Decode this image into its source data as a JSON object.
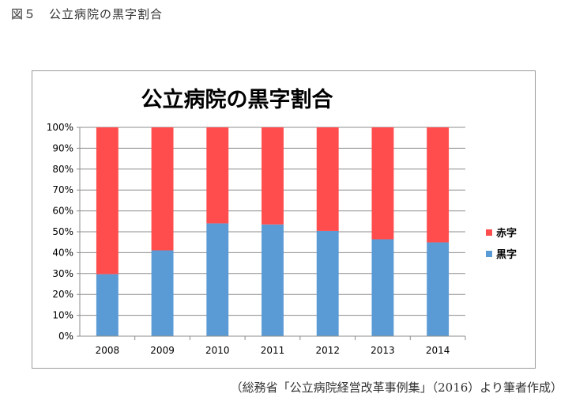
{
  "figure_title": "図５　公立病院の黒字割合",
  "caption": "（総務省「公立病院経営改革事例集」（2016）より筆者作成）",
  "chart_data": {
    "type": "bar",
    "stacked": true,
    "title": "公立病院の黒字割合",
    "categories": [
      "2008",
      "2009",
      "2010",
      "2011",
      "2012",
      "2013",
      "2014"
    ],
    "series": [
      {
        "name": "黒字",
        "color": "#5b9bd5",
        "values": [
          29.7,
          41.1,
          54.0,
          53.5,
          50.4,
          46.4,
          44.9
        ]
      },
      {
        "name": "赤字",
        "color": "#ff4d4d",
        "values": [
          70.3,
          58.9,
          46.0,
          46.5,
          49.6,
          53.6,
          55.1
        ]
      }
    ],
    "ylim": [
      0,
      100
    ],
    "yticks": [
      "0%",
      "10%",
      "20%",
      "30%",
      "40%",
      "50%",
      "60%",
      "70%",
      "80%",
      "90%",
      "100%"
    ],
    "grid": true,
    "legend": "right",
    "legend_entries": [
      "赤字",
      "黒字"
    ]
  }
}
